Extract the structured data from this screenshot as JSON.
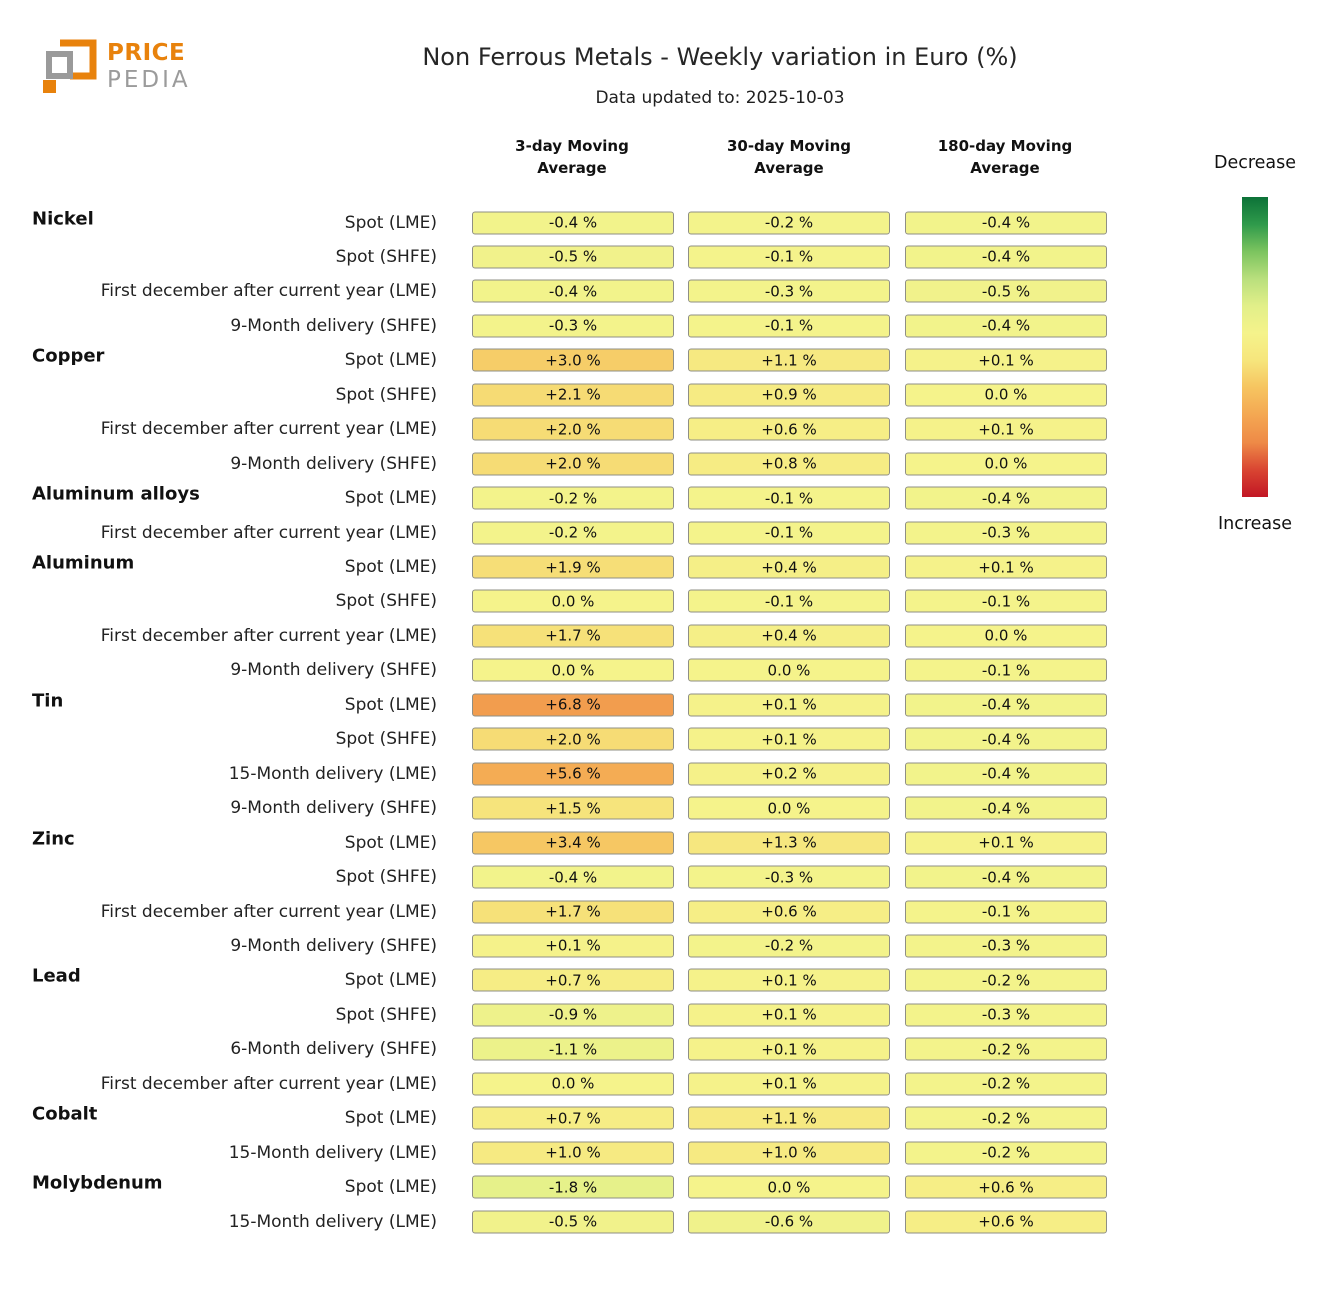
{
  "brand": {
    "name_top": "PRICE",
    "name_bottom": "PEDIA",
    "orange": "#E8820C",
    "gray": "#9B9B9B"
  },
  "header": {
    "title": "Non Ferrous Metals - Weekly variation in Euro (%)",
    "subtitle": "Data updated to: 2025-10-03"
  },
  "legend": {
    "top_label": "Decrease",
    "bottom_label": "Increase",
    "gradient_top_to_bottom": [
      "#0c7238",
      "#2f9a4b",
      "#7cc45f",
      "#b9df7d",
      "#e2ef89",
      "#f5f38b",
      "#f6e57c",
      "#f6c460",
      "#f4a752",
      "#ee8a47",
      "#d94532",
      "#c21624"
    ]
  },
  "chart_data": {
    "type": "heatmap",
    "title": "Non Ferrous Metals - Weekly variation in Euro (%)",
    "subtitle": "Data updated to: 2025-10-03",
    "unit": "%",
    "columns": [
      "3-day Moving Average",
      "30-day Moving Average",
      "180-day Moving Average"
    ],
    "value_scale": {
      "min": -15,
      "max": 15
    },
    "groups": [
      {
        "name": "Nickel",
        "rows": [
          {
            "label": "Spot (LME)",
            "values": [
              -0.4,
              -0.2,
              -0.4
            ]
          },
          {
            "label": "Spot (SHFE)",
            "values": [
              -0.5,
              -0.1,
              -0.4
            ]
          },
          {
            "label": "First december after current year (LME)",
            "values": [
              -0.4,
              -0.3,
              -0.5
            ]
          },
          {
            "label": "9-Month delivery (SHFE)",
            "values": [
              -0.3,
              -0.1,
              -0.4
            ]
          }
        ]
      },
      {
        "name": "Copper",
        "rows": [
          {
            "label": "Spot (LME)",
            "values": [
              3.0,
              1.1,
              0.1
            ]
          },
          {
            "label": "Spot (SHFE)",
            "values": [
              2.1,
              0.9,
              0.0
            ]
          },
          {
            "label": "First december after current year (LME)",
            "values": [
              2.0,
              0.6,
              0.1
            ]
          },
          {
            "label": "9-Month delivery (SHFE)",
            "values": [
              2.0,
              0.8,
              0.0
            ]
          }
        ]
      },
      {
        "name": "Aluminum alloys",
        "rows": [
          {
            "label": "Spot (LME)",
            "values": [
              -0.2,
              -0.1,
              -0.4
            ]
          },
          {
            "label": "First december after current year (LME)",
            "values": [
              -0.2,
              -0.1,
              -0.3
            ]
          }
        ]
      },
      {
        "name": "Aluminum",
        "rows": [
          {
            "label": "Spot (LME)",
            "values": [
              1.9,
              0.4,
              0.1
            ]
          },
          {
            "label": "Spot (SHFE)",
            "values": [
              0.0,
              -0.1,
              -0.1
            ]
          },
          {
            "label": "First december after current year (LME)",
            "values": [
              1.7,
              0.4,
              0.0
            ]
          },
          {
            "label": "9-Month delivery (SHFE)",
            "values": [
              0.0,
              0.0,
              -0.1
            ]
          }
        ]
      },
      {
        "name": "Tin",
        "rows": [
          {
            "label": "Spot (LME)",
            "values": [
              6.8,
              0.1,
              -0.4
            ]
          },
          {
            "label": "Spot (SHFE)",
            "values": [
              2.0,
              0.1,
              -0.4
            ]
          },
          {
            "label": "15-Month delivery (LME)",
            "values": [
              5.6,
              0.2,
              -0.4
            ]
          },
          {
            "label": "9-Month delivery (SHFE)",
            "values": [
              1.5,
              0.0,
              -0.4
            ]
          }
        ]
      },
      {
        "name": "Zinc",
        "rows": [
          {
            "label": "Spot (LME)",
            "values": [
              3.4,
              1.3,
              0.1
            ]
          },
          {
            "label": "Spot (SHFE)",
            "values": [
              -0.4,
              -0.3,
              -0.4
            ]
          },
          {
            "label": "First december after current year (LME)",
            "values": [
              1.7,
              0.6,
              -0.1
            ]
          },
          {
            "label": "9-Month delivery (SHFE)",
            "values": [
              0.1,
              -0.2,
              -0.3
            ]
          }
        ]
      },
      {
        "name": "Lead",
        "rows": [
          {
            "label": "Spot (LME)",
            "values": [
              0.7,
              0.1,
              -0.2
            ]
          },
          {
            "label": "Spot (SHFE)",
            "values": [
              -0.9,
              0.1,
              -0.3
            ]
          },
          {
            "label": "6-Month delivery (SHFE)",
            "values": [
              -1.1,
              0.1,
              -0.2
            ]
          },
          {
            "label": "First december after current year (LME)",
            "values": [
              0.0,
              0.1,
              -0.2
            ]
          }
        ]
      },
      {
        "name": "Cobalt",
        "rows": [
          {
            "label": "Spot (LME)",
            "values": [
              0.7,
              1.1,
              -0.2
            ]
          },
          {
            "label": "15-Month delivery (LME)",
            "values": [
              1.0,
              1.0,
              -0.2
            ]
          }
        ]
      },
      {
        "name": "Molybdenum",
        "rows": [
          {
            "label": "Spot (LME)",
            "values": [
              -1.8,
              0.0,
              0.6
            ]
          },
          {
            "label": "15-Month delivery (LME)",
            "values": [
              -0.5,
              -0.6,
              0.6
            ]
          }
        ]
      }
    ]
  }
}
